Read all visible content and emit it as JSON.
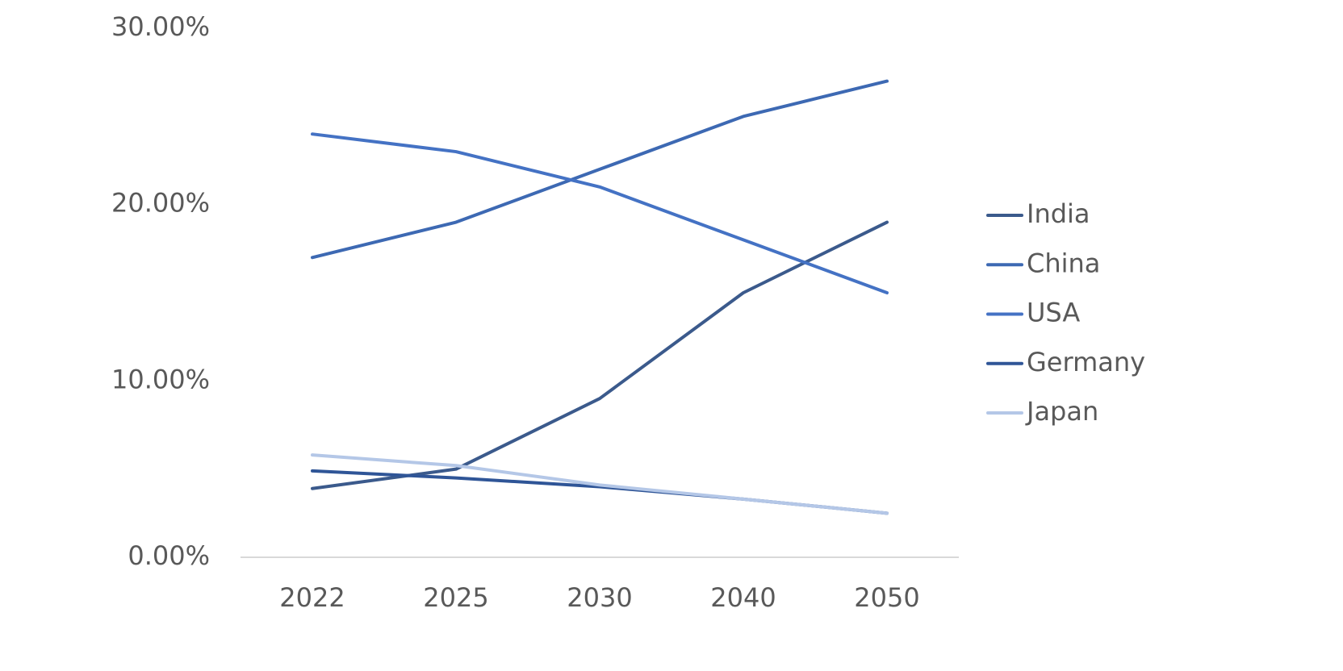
{
  "chart_data": {
    "type": "line",
    "categories": [
      "2022",
      "2025",
      "2030",
      "2040",
      "2050"
    ],
    "series": [
      {
        "name": "India",
        "color": "#3b5a8c",
        "values": [
          3.9,
          5,
          9,
          15,
          19
        ]
      },
      {
        "name": "China",
        "color": "#3d69b3",
        "values": [
          17,
          19,
          22,
          25,
          27
        ]
      },
      {
        "name": "USA",
        "color": "#4472c4",
        "values": [
          24,
          23,
          21,
          18,
          15
        ]
      },
      {
        "name": "Germany",
        "color": "#2f5597",
        "values": [
          4.9,
          4.5,
          4,
          3.3,
          2.5
        ]
      },
      {
        "name": "Japan",
        "color": "#b4c7e7",
        "values": [
          5.8,
          5.2,
          4.1,
          3.3,
          2.5
        ]
      }
    ],
    "ylim": [
      0,
      30
    ],
    "yticks": [
      {
        "value": 0,
        "label": "0.00%"
      },
      {
        "value": 10,
        "label": "10.00%"
      },
      {
        "value": 20,
        "label": "20.00%"
      },
      {
        "value": 30,
        "label": "30.00%"
      }
    ],
    "grid": false,
    "legend": "right"
  }
}
